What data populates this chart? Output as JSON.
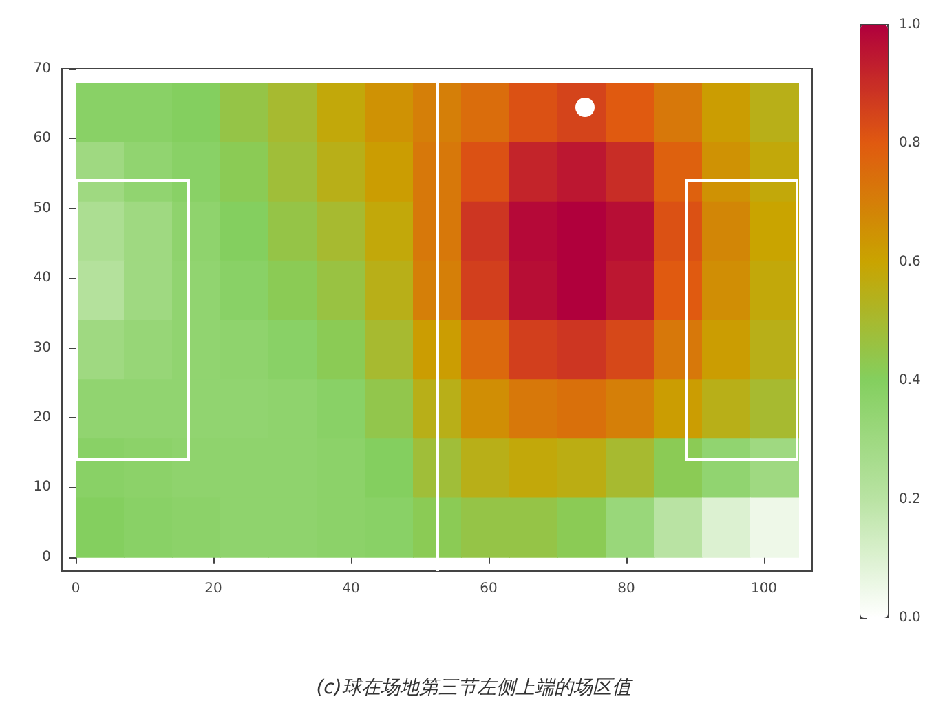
{
  "chart_data": {
    "type": "heatmap",
    "title": "(c)球在场地第三节左侧上端的场区值",
    "x": [
      3.5,
      10.5,
      17.5,
      24.5,
      31.5,
      38.5,
      45.5,
      52.5,
      59.5,
      66.5,
      73.5,
      80.5,
      87.5,
      94.5,
      101.5
    ],
    "y": [
      63.75,
      55.25,
      46.75,
      38.25,
      29.75,
      21.25,
      12.75,
      4.25
    ],
    "cells": [
      [
        0.38,
        0.38,
        0.4,
        0.45,
        0.5,
        0.58,
        0.65,
        0.7,
        0.75,
        0.82,
        0.85,
        0.8,
        0.72,
        0.62,
        0.55
      ],
      [
        0.3,
        0.35,
        0.38,
        0.42,
        0.48,
        0.55,
        0.62,
        0.72,
        0.82,
        0.92,
        0.95,
        0.9,
        0.78,
        0.65,
        0.58
      ],
      [
        0.25,
        0.3,
        0.36,
        0.4,
        0.45,
        0.5,
        0.58,
        0.72,
        0.88,
        0.98,
        1.0,
        0.97,
        0.82,
        0.68,
        0.6
      ],
      [
        0.22,
        0.3,
        0.35,
        0.38,
        0.42,
        0.46,
        0.55,
        0.7,
        0.86,
        0.97,
        1.0,
        0.95,
        0.8,
        0.66,
        0.58
      ],
      [
        0.3,
        0.33,
        0.35,
        0.36,
        0.38,
        0.42,
        0.5,
        0.62,
        0.76,
        0.86,
        0.88,
        0.84,
        0.72,
        0.62,
        0.55
      ],
      [
        0.35,
        0.35,
        0.35,
        0.35,
        0.36,
        0.38,
        0.44,
        0.55,
        0.66,
        0.72,
        0.74,
        0.7,
        0.62,
        0.55,
        0.5
      ],
      [
        0.38,
        0.37,
        0.36,
        0.36,
        0.36,
        0.37,
        0.4,
        0.48,
        0.55,
        0.58,
        0.56,
        0.5,
        0.42,
        0.35,
        0.3
      ],
      [
        0.4,
        0.38,
        0.37,
        0.36,
        0.36,
        0.37,
        0.38,
        0.42,
        0.45,
        0.45,
        0.42,
        0.32,
        0.2,
        0.1,
        0.05
      ]
    ],
    "xlim": [
      -2,
      107
    ],
    "xticks": [
      0,
      20,
      40,
      60,
      80,
      100
    ],
    "ylim": [
      -2,
      70
    ],
    "yticks": [
      0,
      10,
      20,
      30,
      40,
      50,
      60,
      70
    ],
    "clim": [
      0,
      1
    ],
    "cticks": [
      {
        "value": 0,
        "label": "0.0"
      },
      0.2,
      0.4,
      0.6,
      0.8,
      {
        "value": 1,
        "label": "1.0"
      }
    ],
    "ref_lines": [
      {
        "axis": "x",
        "value": 52.5,
        "label": null,
        "color": "#ffffff"
      }
    ]
  }
}
